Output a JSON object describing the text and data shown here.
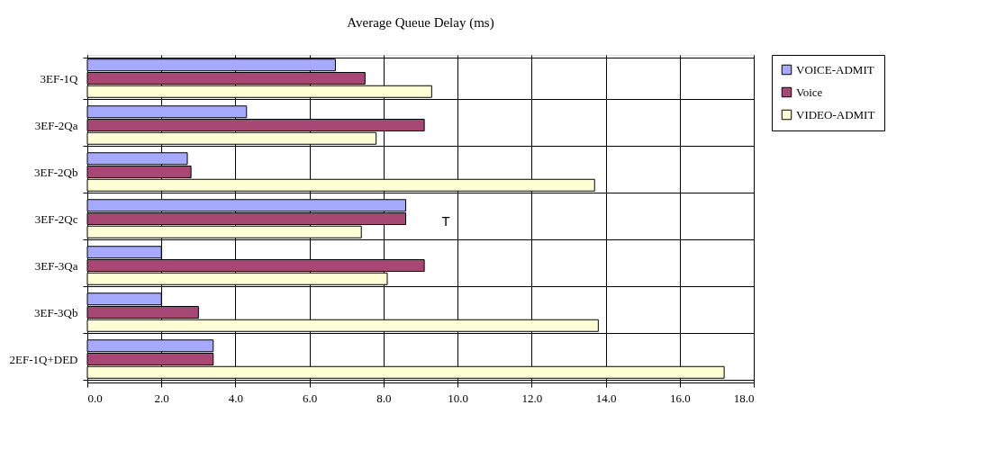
{
  "chart_data": {
    "type": "bar",
    "orientation": "horizontal",
    "title": "Average Queue Delay (ms)",
    "categories": [
      "3EF-1Q",
      "3EF-2Qa",
      "3EF-2Qb",
      "3EF-2Qc",
      "3EF-3Qa",
      "3EF-3Qb",
      "2EF-1Q+DED"
    ],
    "series": [
      {
        "name": "VOICE-ADMIT",
        "color": "#a6aaff",
        "values": [
          6.7,
          4.3,
          2.7,
          8.6,
          2.0,
          2.0,
          3.4
        ]
      },
      {
        "name": "Voice",
        "color": "#a64873",
        "values": [
          7.5,
          9.1,
          2.8,
          8.6,
          9.1,
          3.0,
          3.4
        ]
      },
      {
        "name": "VIDEO-ADMIT",
        "color": "#ffffd6",
        "values": [
          9.3,
          7.8,
          13.7,
          7.4,
          8.1,
          13.8,
          17.2
        ]
      }
    ],
    "xlim": [
      0,
      18
    ],
    "xticks": [
      {
        "value": 0,
        "label": "0.0"
      },
      {
        "value": 2,
        "label": "2.0"
      },
      {
        "value": 4,
        "label": "4.0"
      },
      {
        "value": 6,
        "label": "6.0"
      },
      {
        "value": 8,
        "label": "8.0"
      },
      {
        "value": 10,
        "label": "10.0"
      },
      {
        "value": 12,
        "label": "12.0"
      },
      {
        "value": 14,
        "label": "14.0"
      },
      {
        "value": 16,
        "label": "16.0"
      },
      {
        "value": 18,
        "label": "18.0"
      }
    ],
    "annotations": [
      "T"
    ],
    "grid": "x",
    "legend": "right"
  }
}
